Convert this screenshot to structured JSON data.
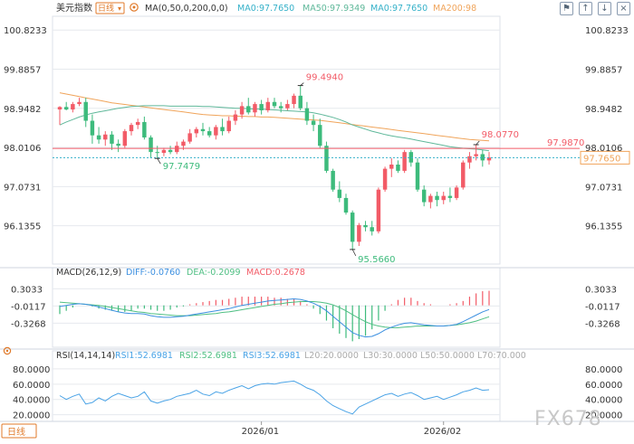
{
  "header": {
    "symbol": "美元指数",
    "period": "日线",
    "ma_label": "MA(0,50,0,200,0,0)",
    "ma1": "MA0:97.7650",
    "ma50": "MA50:97.9349",
    "ma0b": "MA0:97.7650",
    "ma200": "MA200:98",
    "toolbar_icons": [
      "flag-icon",
      "arrow-up-icon",
      "arrow-down-icon",
      "close-icon"
    ]
  },
  "macd_header": {
    "title": "MACD(26,12,9)",
    "diff": "DIFF:-0.0760",
    "dea": "DEA:-0.2099",
    "macd": "MACD:0.2678"
  },
  "rsi_header": {
    "title": "RSI(14,14,14)",
    "rsi1": "RSI1:52.6981",
    "rsi2": "RSI2:52.6981",
    "rsi3": "RSI3:52.6981",
    "l20": "L20:20.0000",
    "l30": "L30:30.0000",
    "l50": "L50:50.0000",
    "l70": "L70:70.000"
  },
  "footer": {
    "period_button": "日线",
    "watermark": "FX678"
  },
  "colors": {
    "up": "#f25b67",
    "down": "#3dbb7c",
    "ma50": "#5fb89a",
    "ma200": "#f0a45a",
    "macd_diff": "#3b8fe0",
    "macd_dea": "#4fbf83",
    "rsi_line": "#4aa3e6",
    "ref_line": "#f25b67",
    "current_line": "#35b1c9",
    "grid": "#e6e9ee",
    "axis_text": "#333333"
  },
  "chart_data": [
    {
      "type": "candlestick",
      "panel": "price",
      "y_ticks": [
        100.8233,
        99.8857,
        98.9482,
        98.0106,
        97.0731,
        96.1355
      ],
      "ylim": [
        95.26,
        101.11
      ],
      "x_labels": [
        {
          "index": 31,
          "label": "2026/01"
        },
        {
          "index": 59,
          "label": "2026/02"
        }
      ],
      "candles": [
        {
          "o": 98.92,
          "h": 99.0,
          "l": 98.55,
          "c": 98.98
        },
        {
          "o": 98.98,
          "h": 99.1,
          "l": 98.9,
          "c": 98.92
        },
        {
          "o": 98.92,
          "h": 99.1,
          "l": 98.85,
          "c": 99.05
        },
        {
          "o": 99.05,
          "h": 99.2,
          "l": 99.0,
          "c": 99.1
        },
        {
          "o": 99.1,
          "h": 99.2,
          "l": 98.5,
          "c": 98.65
        },
        {
          "o": 98.65,
          "h": 98.8,
          "l": 98.1,
          "c": 98.3
        },
        {
          "o": 98.3,
          "h": 98.5,
          "l": 98.1,
          "c": 98.2
        },
        {
          "o": 98.2,
          "h": 98.4,
          "l": 98.05,
          "c": 98.32
        },
        {
          "o": 98.32,
          "h": 98.4,
          "l": 97.95,
          "c": 98.1
        },
        {
          "o": 98.1,
          "h": 98.2,
          "l": 97.9,
          "c": 98.05
        },
        {
          "o": 98.05,
          "h": 98.45,
          "l": 98.0,
          "c": 98.4
        },
        {
          "o": 98.4,
          "h": 98.6,
          "l": 98.3,
          "c": 98.55
        },
        {
          "o": 98.55,
          "h": 98.7,
          "l": 98.45,
          "c": 98.62
        },
        {
          "o": 98.62,
          "h": 98.75,
          "l": 98.2,
          "c": 98.25
        },
        {
          "o": 98.25,
          "h": 98.3,
          "l": 97.75,
          "c": 97.9
        },
        {
          "o": 97.9,
          "h": 98.05,
          "l": 97.75,
          "c": 97.88
        },
        {
          "o": 97.88,
          "h": 98.0,
          "l": 97.8,
          "c": 97.95
        },
        {
          "o": 97.95,
          "h": 98.05,
          "l": 97.85,
          "c": 97.9
        },
        {
          "o": 97.9,
          "h": 98.15,
          "l": 97.85,
          "c": 98.05
        },
        {
          "o": 98.05,
          "h": 98.2,
          "l": 97.95,
          "c": 98.15
        },
        {
          "o": 98.15,
          "h": 98.45,
          "l": 98.1,
          "c": 98.35
        },
        {
          "o": 98.35,
          "h": 98.5,
          "l": 98.25,
          "c": 98.45
        },
        {
          "o": 98.45,
          "h": 98.6,
          "l": 98.3,
          "c": 98.4
        },
        {
          "o": 98.4,
          "h": 98.5,
          "l": 98.25,
          "c": 98.3
        },
        {
          "o": 98.3,
          "h": 98.55,
          "l": 98.2,
          "c": 98.5
        },
        {
          "o": 98.5,
          "h": 98.7,
          "l": 98.3,
          "c": 98.4
        },
        {
          "o": 98.4,
          "h": 98.75,
          "l": 98.35,
          "c": 98.65
        },
        {
          "o": 98.65,
          "h": 98.9,
          "l": 98.55,
          "c": 98.8
        },
        {
          "o": 98.8,
          "h": 99.1,
          "l": 98.7,
          "c": 99.0
        },
        {
          "o": 99.0,
          "h": 99.2,
          "l": 98.8,
          "c": 98.85
        },
        {
          "o": 98.85,
          "h": 99.1,
          "l": 98.75,
          "c": 99.05
        },
        {
          "o": 99.05,
          "h": 99.15,
          "l": 98.8,
          "c": 98.9
        },
        {
          "o": 98.9,
          "h": 99.2,
          "l": 98.85,
          "c": 99.1
        },
        {
          "o": 99.1,
          "h": 99.2,
          "l": 98.95,
          "c": 99.0
        },
        {
          "o": 99.0,
          "h": 99.1,
          "l": 98.85,
          "c": 98.95
        },
        {
          "o": 98.95,
          "h": 99.15,
          "l": 98.9,
          "c": 99.05
        },
        {
          "o": 99.05,
          "h": 99.3,
          "l": 98.95,
          "c": 99.25
        },
        {
          "o": 99.25,
          "h": 99.49,
          "l": 98.9,
          "c": 98.95
        },
        {
          "o": 98.95,
          "h": 99.1,
          "l": 98.55,
          "c": 98.65
        },
        {
          "o": 98.65,
          "h": 98.8,
          "l": 98.4,
          "c": 98.55
        },
        {
          "o": 98.55,
          "h": 98.7,
          "l": 98.0,
          "c": 98.05
        },
        {
          "o": 98.05,
          "h": 98.15,
          "l": 97.4,
          "c": 97.45
        },
        {
          "o": 97.45,
          "h": 97.5,
          "l": 96.95,
          "c": 97.0
        },
        {
          "o": 97.0,
          "h": 97.2,
          "l": 96.7,
          "c": 96.8
        },
        {
          "o": 96.8,
          "h": 96.9,
          "l": 96.4,
          "c": 96.45
        },
        {
          "o": 96.45,
          "h": 96.5,
          "l": 95.57,
          "c": 95.75
        },
        {
          "o": 95.75,
          "h": 96.2,
          "l": 95.65,
          "c": 96.15
        },
        {
          "o": 96.15,
          "h": 96.25,
          "l": 96.0,
          "c": 96.1
        },
        {
          "o": 96.1,
          "h": 96.25,
          "l": 95.9,
          "c": 96.0
        },
        {
          "o": 96.0,
          "h": 97.05,
          "l": 95.95,
          "c": 97.0
        },
        {
          "o": 97.0,
          "h": 97.55,
          "l": 96.95,
          "c": 97.5
        },
        {
          "o": 97.5,
          "h": 97.75,
          "l": 97.3,
          "c": 97.6
        },
        {
          "o": 97.6,
          "h": 97.7,
          "l": 97.4,
          "c": 97.45
        },
        {
          "o": 97.45,
          "h": 97.95,
          "l": 97.4,
          "c": 97.9
        },
        {
          "o": 97.9,
          "h": 97.95,
          "l": 97.55,
          "c": 97.65
        },
        {
          "o": 97.65,
          "h": 97.75,
          "l": 96.95,
          "c": 97.0
        },
        {
          "o": 97.0,
          "h": 97.1,
          "l": 96.6,
          "c": 96.7
        },
        {
          "o": 96.7,
          "h": 96.9,
          "l": 96.55,
          "c": 96.85
        },
        {
          "o": 96.85,
          "h": 96.95,
          "l": 96.6,
          "c": 96.75
        },
        {
          "o": 96.75,
          "h": 96.95,
          "l": 96.65,
          "c": 96.85
        },
        {
          "o": 96.85,
          "h": 97.05,
          "l": 96.7,
          "c": 96.8
        },
        {
          "o": 96.8,
          "h": 97.1,
          "l": 96.75,
          "c": 97.05
        },
        {
          "o": 97.05,
          "h": 97.7,
          "l": 97.0,
          "c": 97.65
        },
        {
          "o": 97.65,
          "h": 97.9,
          "l": 97.5,
          "c": 97.8
        },
        {
          "o": 97.8,
          "h": 98.08,
          "l": 97.7,
          "c": 97.85
        },
        {
          "o": 97.85,
          "h": 97.95,
          "l": 97.55,
          "c": 97.7
        },
        {
          "o": 97.7,
          "h": 97.9,
          "l": 97.6,
          "c": 97.77
        }
      ],
      "ma50": [
        98.55,
        98.62,
        98.68,
        98.74,
        98.79,
        98.83,
        98.86,
        98.89,
        98.92,
        98.95,
        98.97,
        98.99,
        99.0,
        99.01,
        99.01,
        99.01,
        99.01,
        99.0,
        99.0,
        99.0,
        99.0,
        99.0,
        98.99,
        98.99,
        98.98,
        98.97,
        98.96,
        98.95,
        98.95,
        98.94,
        98.93,
        98.93,
        98.92,
        98.91,
        98.9,
        98.89,
        98.88,
        98.87,
        98.86,
        98.84,
        98.81,
        98.77,
        98.73,
        98.68,
        98.62,
        98.55,
        98.5,
        98.45,
        98.4,
        98.36,
        98.32,
        98.29,
        98.26,
        98.24,
        98.21,
        98.18,
        98.15,
        98.12,
        98.09,
        98.06,
        98.03,
        98.01,
        97.99,
        97.98,
        97.97,
        97.95,
        97.93
      ],
      "ma200": [
        99.32,
        99.29,
        99.26,
        99.23,
        99.2,
        99.17,
        99.14,
        99.11,
        99.08,
        99.06,
        99.04,
        99.02,
        99.0,
        98.98,
        98.96,
        98.94,
        98.92,
        98.9,
        98.88,
        98.86,
        98.84,
        98.82,
        98.8,
        98.79,
        98.78,
        98.77,
        98.77,
        98.76,
        98.76,
        98.75,
        98.75,
        98.74,
        98.74,
        98.73,
        98.72,
        98.71,
        98.7,
        98.69,
        98.68,
        98.67,
        98.66,
        98.64,
        98.62,
        98.6,
        98.58,
        98.56,
        98.54,
        98.52,
        98.5,
        98.48,
        98.46,
        98.44,
        98.42,
        98.4,
        98.38,
        98.36,
        98.34,
        98.32,
        98.3,
        98.28,
        98.26,
        98.24,
        98.22,
        98.2,
        98.19,
        98.18,
        98.17
      ],
      "annotations": {
        "high_label": "99.4940",
        "high_index": 37,
        "high_value": 99.494,
        "low_label": "95.5660",
        "low_index": 45,
        "low_value": 95.566,
        "local_low_label": "97.7479",
        "local_low_index": 15,
        "local_low_value": 97.7479,
        "recent_high_label": "98.0770",
        "recent_high_index": 64,
        "recent_high_value": 98.077,
        "ref_line_label": "97.9870",
        "ref_line_value": 97.987,
        "current_label": "97.7650",
        "current_value": 97.765
      }
    },
    {
      "type": "macd",
      "panel": "macd",
      "y_ticks": [
        0.3033,
        -0.0117,
        -0.3268
      ],
      "ylim": [
        -0.67,
        0.46
      ],
      "diff": [
        -0.02,
        0.0,
        0.02,
        0.03,
        0.02,
        0.0,
        -0.03,
        -0.06,
        -0.09,
        -0.12,
        -0.14,
        -0.15,
        -0.15,
        -0.16,
        -0.19,
        -0.21,
        -0.22,
        -0.22,
        -0.21,
        -0.2,
        -0.18,
        -0.16,
        -0.14,
        -0.12,
        -0.1,
        -0.08,
        -0.06,
        -0.03,
        0.0,
        0.02,
        0.04,
        0.06,
        0.08,
        0.09,
        0.1,
        0.11,
        0.12,
        0.11,
        0.08,
        0.04,
        -0.02,
        -0.1,
        -0.2,
        -0.3,
        -0.4,
        -0.5,
        -0.55,
        -0.58,
        -0.57,
        -0.52,
        -0.45,
        -0.4,
        -0.36,
        -0.33,
        -0.32,
        -0.34,
        -0.36,
        -0.37,
        -0.38,
        -0.38,
        -0.37,
        -0.35,
        -0.3,
        -0.24,
        -0.18,
        -0.12,
        -0.076
      ],
      "dea": [
        0.06,
        0.05,
        0.04,
        0.03,
        0.02,
        0.01,
        0.0,
        -0.02,
        -0.04,
        -0.06,
        -0.08,
        -0.1,
        -0.12,
        -0.13,
        -0.15,
        -0.16,
        -0.17,
        -0.18,
        -0.19,
        -0.19,
        -0.19,
        -0.18,
        -0.17,
        -0.16,
        -0.15,
        -0.13,
        -0.12,
        -0.1,
        -0.08,
        -0.06,
        -0.04,
        -0.02,
        0.0,
        0.02,
        0.03,
        0.05,
        0.06,
        0.07,
        0.07,
        0.07,
        0.06,
        0.04,
        0.01,
        -0.04,
        -0.1,
        -0.17,
        -0.24,
        -0.3,
        -0.35,
        -0.38,
        -0.4,
        -0.41,
        -0.41,
        -0.4,
        -0.39,
        -0.38,
        -0.38,
        -0.38,
        -0.38,
        -0.38,
        -0.37,
        -0.36,
        -0.34,
        -0.32,
        -0.29,
        -0.25,
        -0.21
      ],
      "hist": [
        -0.16,
        -0.1,
        -0.04,
        0.0,
        0.0,
        -0.02,
        -0.06,
        -0.08,
        -0.1,
        -0.12,
        -0.12,
        -0.1,
        -0.06,
        -0.06,
        -0.08,
        -0.1,
        -0.1,
        -0.08,
        -0.04,
        -0.02,
        0.02,
        0.04,
        0.06,
        0.08,
        0.1,
        0.1,
        0.12,
        0.14,
        0.16,
        0.16,
        0.16,
        0.16,
        0.16,
        0.14,
        0.14,
        0.12,
        0.12,
        0.08,
        0.02,
        -0.06,
        -0.16,
        -0.28,
        -0.42,
        -0.52,
        -0.6,
        -0.66,
        -0.62,
        -0.56,
        -0.44,
        -0.28,
        -0.1,
        0.02,
        0.1,
        0.14,
        0.14,
        0.08,
        0.04,
        0.02,
        0.0,
        0.0,
        0.02,
        0.04,
        0.08,
        0.16,
        0.22,
        0.26,
        0.2678
      ]
    },
    {
      "type": "line",
      "panel": "rsi",
      "y_ticks": [
        80.0,
        60.0,
        40.0,
        20.0
      ],
      "ylim": [
        16.0,
        87.0
      ],
      "reference_lines": [
        20,
        30,
        50,
        70
      ],
      "values": [
        45,
        40,
        44,
        47,
        34,
        36,
        42,
        38,
        44,
        48,
        45,
        42,
        44,
        50,
        38,
        35,
        38,
        40,
        44,
        46,
        48,
        52,
        47,
        45,
        50,
        48,
        52,
        55,
        58,
        54,
        58,
        60,
        61,
        60,
        62,
        63,
        64,
        60,
        55,
        52,
        46,
        38,
        32,
        28,
        24,
        21,
        30,
        34,
        38,
        42,
        46,
        48,
        44,
        47,
        49,
        45,
        40,
        42,
        44,
        40,
        43,
        46,
        50,
        52,
        55,
        52,
        52.7
      ]
    }
  ]
}
